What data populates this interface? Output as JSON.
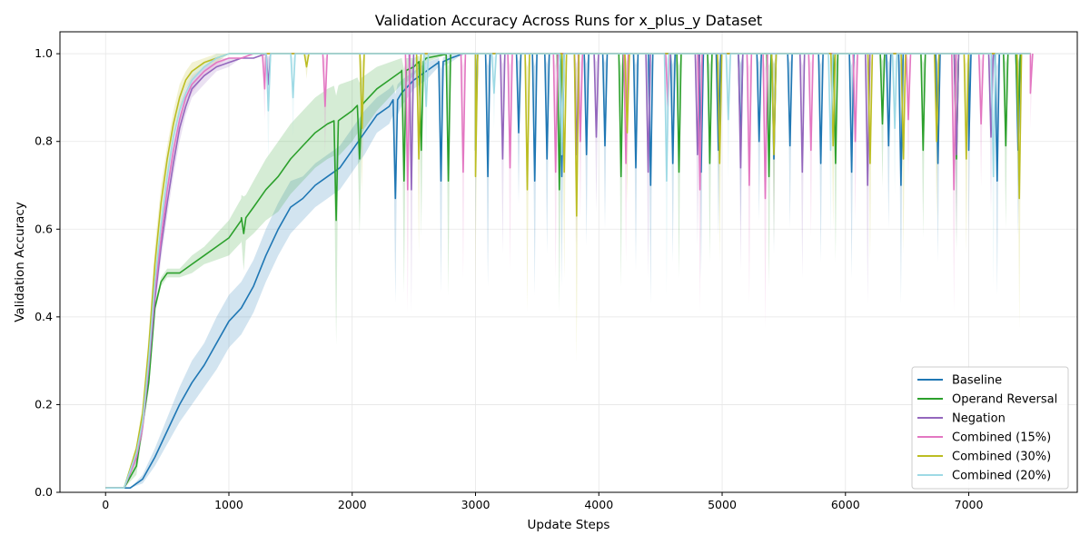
{
  "chart_data": {
    "type": "line",
    "title": "Validation Accuracy Across Runs for x_plus_y Dataset",
    "xlabel": "Update Steps",
    "ylabel": "Validation Accuracy",
    "xlim": [
      -370,
      7880
    ],
    "ylim": [
      0.0,
      1.05
    ],
    "xticks": [
      0,
      1000,
      2000,
      3000,
      4000,
      5000,
      6000,
      7000
    ],
    "xtick_labels": [
      "0",
      "1000",
      "2000",
      "3000",
      "4000",
      "5000",
      "6000",
      "7000"
    ],
    "yticks": [
      0.0,
      0.2,
      0.4,
      0.6,
      0.8,
      1.0
    ],
    "ytick_labels": [
      "0.0",
      "0.2",
      "0.4",
      "0.6",
      "0.8",
      "1.0"
    ],
    "grid": true,
    "legend_position": "lower-right",
    "series": [
      {
        "name": "Baseline",
        "color": "#1f77b4",
        "x": [
          0,
          200,
          300,
          400,
          500,
          600,
          700,
          800,
          900,
          1000,
          1100,
          1200,
          1300,
          1400,
          1500,
          1600,
          1700,
          1800,
          1900,
          2000,
          2100,
          2200,
          2300,
          2400,
          2500,
          2600,
          2700,
          2800,
          2900,
          3000,
          3500,
          4000,
          5000,
          6000,
          7000,
          7500
        ],
        "y": [
          0.01,
          0.01,
          0.03,
          0.08,
          0.14,
          0.2,
          0.25,
          0.29,
          0.34,
          0.39,
          0.42,
          0.47,
          0.54,
          0.6,
          0.65,
          0.67,
          0.7,
          0.72,
          0.74,
          0.78,
          0.82,
          0.86,
          0.88,
          0.91,
          0.94,
          0.96,
          0.98,
          0.99,
          1.0,
          1.0,
          1.0,
          1.0,
          1.0,
          1.0,
          1.0,
          1.0
        ],
        "band": [
          0.0,
          0.0,
          0.01,
          0.02,
          0.03,
          0.04,
          0.05,
          0.05,
          0.06,
          0.06,
          0.06,
          0.06,
          0.06,
          0.06,
          0.06,
          0.05,
          0.05,
          0.05,
          0.05,
          0.05,
          0.05,
          0.04,
          0.04,
          0.03,
          0.02,
          0.02,
          0.01,
          0.01,
          0.0,
          0.0,
          0.0,
          0.0,
          0.0,
          0.0,
          0.0,
          0.0
        ],
        "dips": [
          [
            2350,
            0.67
          ],
          [
            2720,
            0.71
          ],
          [
            3000,
            0.78
          ],
          [
            3100,
            0.72
          ],
          [
            3350,
            0.82
          ],
          [
            3480,
            0.71
          ],
          [
            3580,
            0.76
          ],
          [
            3700,
            0.72
          ],
          [
            3900,
            0.77
          ],
          [
            4050,
            0.79
          ],
          [
            4300,
            0.74
          ],
          [
            4420,
            0.7
          ],
          [
            4600,
            0.75
          ],
          [
            4830,
            0.73
          ],
          [
            4970,
            0.78
          ],
          [
            5150,
            0.79
          ],
          [
            5300,
            0.8
          ],
          [
            5420,
            0.76
          ],
          [
            5550,
            0.79
          ],
          [
            5800,
            0.75
          ],
          [
            6050,
            0.73
          ],
          [
            6350,
            0.79
          ],
          [
            6450,
            0.7
          ],
          [
            6750,
            0.75
          ],
          [
            7000,
            0.78
          ],
          [
            7230,
            0.71
          ],
          [
            7400,
            0.78
          ]
        ]
      },
      {
        "name": "Operand Reversal",
        "color": "#2ca02c",
        "x": [
          0,
          150,
          250,
          350,
          400,
          450,
          500,
          600,
          700,
          800,
          900,
          1000,
          1100,
          1200,
          1300,
          1400,
          1500,
          1600,
          1700,
          1800,
          1900,
          2000,
          2100,
          2200,
          2300,
          2400,
          2500,
          2600,
          2800,
          3000,
          3500,
          4000,
          5000,
          6000,
          7000,
          7500
        ],
        "y": [
          0.01,
          0.01,
          0.06,
          0.25,
          0.42,
          0.48,
          0.5,
          0.5,
          0.52,
          0.54,
          0.56,
          0.58,
          0.62,
          0.65,
          0.69,
          0.72,
          0.76,
          0.79,
          0.82,
          0.84,
          0.85,
          0.87,
          0.89,
          0.92,
          0.94,
          0.96,
          0.97,
          0.99,
          1.0,
          1.0,
          1.0,
          1.0,
          1.0,
          1.0,
          1.0,
          1.0
        ],
        "band": [
          0.0,
          0.0,
          0.02,
          0.02,
          0.01,
          0.01,
          0.01,
          0.01,
          0.02,
          0.02,
          0.03,
          0.04,
          0.05,
          0.06,
          0.07,
          0.08,
          0.08,
          0.08,
          0.08,
          0.08,
          0.08,
          0.07,
          0.06,
          0.05,
          0.04,
          0.03,
          0.02,
          0.01,
          0.0,
          0.0,
          0.0,
          0.0,
          0.0,
          0.0,
          0.0,
          0.0
        ],
        "dips": [
          [
            1120,
            0.59
          ],
          [
            1870,
            0.62
          ],
          [
            2060,
            0.76
          ],
          [
            2420,
            0.71
          ],
          [
            2560,
            0.78
          ],
          [
            2780,
            0.71
          ],
          [
            3680,
            0.69
          ],
          [
            4180,
            0.72
          ],
          [
            4650,
            0.73
          ],
          [
            4900,
            0.75
          ],
          [
            5380,
            0.72
          ],
          [
            5920,
            0.75
          ],
          [
            6300,
            0.84
          ],
          [
            6630,
            0.78
          ],
          [
            6900,
            0.76
          ],
          [
            7300,
            0.79
          ],
          [
            7400,
            0.84
          ]
        ]
      },
      {
        "name": "Negation",
        "color": "#9467bd",
        "x": [
          0,
          150,
          250,
          300,
          350,
          400,
          450,
          500,
          550,
          600,
          650,
          700,
          800,
          900,
          1000,
          1100,
          1200,
          1300,
          1400,
          1500,
          2000,
          3000,
          4000,
          5000,
          6000,
          7000,
          7500
        ],
        "y": [
          0.01,
          0.01,
          0.08,
          0.15,
          0.28,
          0.44,
          0.56,
          0.66,
          0.75,
          0.83,
          0.88,
          0.92,
          0.95,
          0.97,
          0.98,
          0.99,
          0.99,
          1.0,
          1.0,
          1.0,
          1.0,
          1.0,
          1.0,
          1.0,
          1.0,
          1.0,
          1.0
        ],
        "band": [
          0.0,
          0.0,
          0.01,
          0.02,
          0.02,
          0.03,
          0.03,
          0.03,
          0.03,
          0.03,
          0.02,
          0.02,
          0.02,
          0.01,
          0.01,
          0.0,
          0.0,
          0.0,
          0.0,
          0.0,
          0.0,
          0.0,
          0.0,
          0.0,
          0.0,
          0.0,
          0.0
        ],
        "dips": [
          [
            1320,
            0.93
          ],
          [
            2480,
            0.69
          ],
          [
            3220,
            0.76
          ],
          [
            3820,
            0.77
          ],
          [
            3980,
            0.81
          ],
          [
            4400,
            0.73
          ],
          [
            4800,
            0.77
          ],
          [
            5150,
            0.74
          ],
          [
            5650,
            0.73
          ],
          [
            6180,
            0.7
          ],
          [
            6900,
            0.77
          ],
          [
            7180,
            0.81
          ]
        ]
      },
      {
        "name": "Combined (15%)",
        "color": "#e377c2",
        "x": [
          0,
          150,
          250,
          300,
          350,
          400,
          450,
          500,
          550,
          600,
          650,
          700,
          800,
          900,
          1000,
          1100,
          1200,
          1300,
          1400,
          1500,
          2000,
          3000,
          4000,
          5000,
          6000,
          7000,
          7500
        ],
        "y": [
          0.01,
          0.01,
          0.08,
          0.15,
          0.29,
          0.46,
          0.58,
          0.69,
          0.78,
          0.85,
          0.9,
          0.93,
          0.96,
          0.98,
          0.99,
          0.99,
          1.0,
          1.0,
          1.0,
          1.0,
          1.0,
          1.0,
          1.0,
          1.0,
          1.0,
          1.0,
          1.0
        ],
        "band": [
          0.0,
          0.0,
          0.01,
          0.02,
          0.02,
          0.03,
          0.03,
          0.03,
          0.03,
          0.03,
          0.02,
          0.02,
          0.01,
          0.01,
          0.0,
          0.0,
          0.0,
          0.0,
          0.0,
          0.0,
          0.0,
          0.0,
          0.0,
          0.0,
          0.0,
          0.0,
          0.0
        ],
        "dips": [
          [
            1290,
            0.92
          ],
          [
            1780,
            0.88
          ],
          [
            2450,
            0.69
          ],
          [
            2900,
            0.73
          ],
          [
            3280,
            0.74
          ],
          [
            3650,
            0.73
          ],
          [
            3850,
            0.8
          ],
          [
            4220,
            0.75
          ],
          [
            4560,
            0.88
          ],
          [
            4820,
            0.69
          ],
          [
            5220,
            0.7
          ],
          [
            5350,
            0.67
          ],
          [
            5720,
            0.78
          ],
          [
            6080,
            0.8
          ],
          [
            6510,
            0.85
          ],
          [
            6880,
            0.69
          ],
          [
            7100,
            0.84
          ],
          [
            7500,
            0.91
          ]
        ]
      },
      {
        "name": "Combined (30%)",
        "color": "#bcbd22",
        "x": [
          0,
          150,
          250,
          300,
          350,
          400,
          450,
          500,
          550,
          600,
          650,
          700,
          800,
          900,
          1000,
          1100,
          1200,
          1500,
          2000,
          3000,
          4000,
          5000,
          6000,
          7000,
          7500
        ],
        "y": [
          0.01,
          0.01,
          0.1,
          0.18,
          0.33,
          0.52,
          0.66,
          0.76,
          0.84,
          0.9,
          0.94,
          0.96,
          0.98,
          0.99,
          1.0,
          1.0,
          1.0,
          1.0,
          1.0,
          1.0,
          1.0,
          1.0,
          1.0,
          1.0,
          1.0
        ],
        "band": [
          0.0,
          0.0,
          0.01,
          0.02,
          0.03,
          0.04,
          0.04,
          0.03,
          0.03,
          0.03,
          0.02,
          0.02,
          0.01,
          0.01,
          0.0,
          0.0,
          0.0,
          0.0,
          0.0,
          0.0,
          0.0,
          0.0,
          0.0,
          0.0,
          0.0
        ],
        "dips": [
          [
            1630,
            0.97
          ],
          [
            2080,
            0.83
          ],
          [
            2540,
            0.76
          ],
          [
            3000,
            0.72
          ],
          [
            3420,
            0.69
          ],
          [
            3720,
            0.73
          ],
          [
            3820,
            0.63
          ],
          [
            4230,
            0.82
          ],
          [
            4980,
            0.75
          ],
          [
            5420,
            0.77
          ],
          [
            5900,
            0.79
          ],
          [
            6200,
            0.75
          ],
          [
            6470,
            0.76
          ],
          [
            6740,
            0.8
          ],
          [
            6980,
            0.76
          ],
          [
            7410,
            0.67
          ]
        ]
      },
      {
        "name": "Combined (20%)",
        "color": "#9edae5",
        "x": [
          0,
          150,
          250,
          300,
          350,
          400,
          450,
          500,
          550,
          600,
          650,
          700,
          800,
          900,
          1000,
          1100,
          1200,
          1500,
          2000,
          3000,
          4000,
          5000,
          6000,
          7000,
          7500
        ],
        "y": [
          0.01,
          0.01,
          0.09,
          0.16,
          0.3,
          0.48,
          0.61,
          0.72,
          0.81,
          0.87,
          0.91,
          0.94,
          0.97,
          0.99,
          1.0,
          1.0,
          1.0,
          1.0,
          1.0,
          1.0,
          1.0,
          1.0,
          1.0,
          1.0,
          1.0
        ],
        "band": [
          0.0,
          0.0,
          0.01,
          0.02,
          0.03,
          0.03,
          0.03,
          0.03,
          0.03,
          0.03,
          0.02,
          0.02,
          0.01,
          0.01,
          0.0,
          0.0,
          0.0,
          0.0,
          0.0,
          0.0,
          0.0,
          0.0,
          0.0,
          0.0,
          0.0
        ],
        "dips": [
          [
            1320,
            0.87
          ],
          [
            1520,
            0.9
          ],
          [
            2600,
            0.88
          ],
          [
            3150,
            0.91
          ],
          [
            3700,
            0.77
          ],
          [
            4550,
            0.71
          ],
          [
            5050,
            0.85
          ],
          [
            5880,
            0.78
          ],
          [
            6400,
            0.83
          ],
          [
            7200,
            0.72
          ]
        ]
      }
    ]
  }
}
